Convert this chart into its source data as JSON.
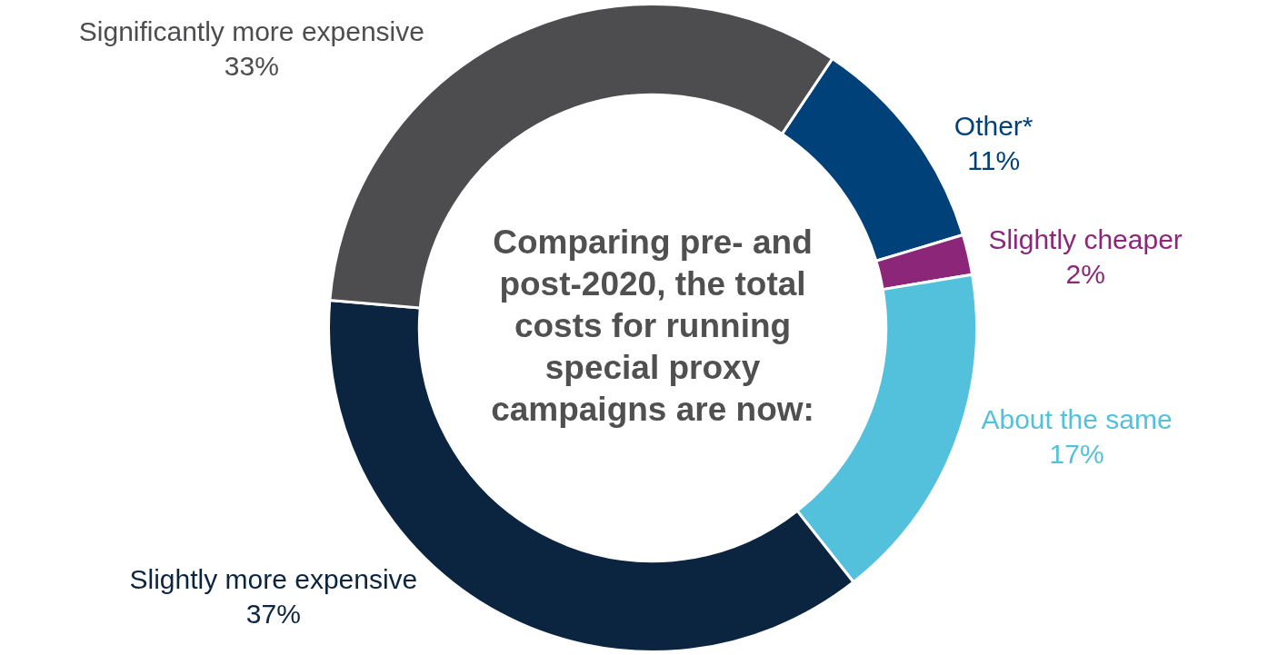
{
  "chart_data": {
    "type": "donut",
    "title": "Comparing pre- and post-2020, the total costs for running special proxy campaigns are now:",
    "categories": [
      "Other*",
      "Slightly cheaper",
      "About the same",
      "Slightly more expensive",
      "Significantly more expensive"
    ],
    "values": [
      11,
      2,
      17,
      37,
      33
    ],
    "value_labels": [
      "11%",
      "2%",
      "17%",
      "37%",
      "33%"
    ],
    "colors": [
      "#00417a",
      "#8b2678",
      "#53c1dc",
      "#0b2540",
      "#4d4d4f"
    ],
    "legend": false
  }
}
